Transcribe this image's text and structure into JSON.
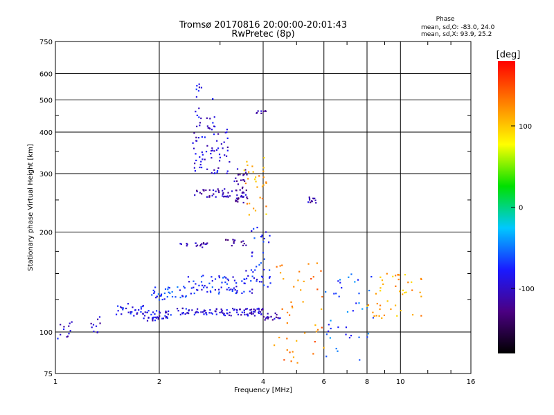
{
  "chart_data": {
    "type": "scatter",
    "title": "Tromsø 20170816 20:00:00-20:01:43",
    "subtitle": "RwPretec (8p)",
    "phase_info": {
      "heading": "Phase",
      "line_o": "mean, sd,O: -83.0, 24.0",
      "line_x": "mean, sd,X:  93.9, 25.2"
    },
    "xlabel": "Frequency [MHz]",
    "ylabel": "Stationary phase Virtual Height [km]",
    "x_scale": "log",
    "y_scale": "log",
    "xlim": [
      1,
      16
    ],
    "ylim": [
      75,
      750
    ],
    "x_ticks": [
      1,
      2,
      4,
      6,
      8,
      10,
      16
    ],
    "x_tick_labels": [
      "1",
      "2",
      "4",
      "6",
      "8",
      "10",
      "16"
    ],
    "y_ticks": [
      75,
      100,
      200,
      300,
      400,
      500,
      600,
      750
    ],
    "y_tick_labels": [
      "75",
      "100",
      "200",
      "300",
      "400",
      "500",
      "600",
      "750"
    ],
    "grid": true,
    "colorbar": {
      "label": "[deg]",
      "range": [
        -180,
        180
      ],
      "ticks": [
        100,
        0,
        -100
      ],
      "tick_labels": [
        "100",
        "0",
        "-100"
      ],
      "colors": [
        "#000000",
        "#4b0082",
        "#1a1aff",
        "#00c8ff",
        "#00e000",
        "#ffff00",
        "#ff8000",
        "#ff0000"
      ]
    },
    "clusters": [
      {
        "x_range": [
          1.0,
          1.12
        ],
        "y_range": [
          95,
          108
        ],
        "phase": -95,
        "count": 12
      },
      {
        "x_range": [
          1.25,
          1.35
        ],
        "y_range": [
          98,
          112
        ],
        "phase": -100,
        "count": 10
      },
      {
        "x_range": [
          1.5,
          1.8
        ],
        "y_range": [
          112,
          122
        ],
        "phase": -85,
        "count": 28
      },
      {
        "x_range": [
          1.8,
          2.2
        ],
        "y_range": [
          108,
          116
        ],
        "phase": -90,
        "count": 40
      },
      {
        "x_range": [
          2.2,
          3.2
        ],
        "y_range": [
          112,
          118
        ],
        "phase": -88,
        "count": 55
      },
      {
        "x_range": [
          3.2,
          4.0
        ],
        "y_range": [
          112,
          118
        ],
        "phase": -100,
        "count": 45
      },
      {
        "x_range": [
          4.0,
          4.5
        ],
        "y_range": [
          108,
          114
        ],
        "phase": -105,
        "count": 18
      },
      {
        "x_range": [
          1.9,
          2.4
        ],
        "y_range": [
          125,
          138
        ],
        "phase": -70,
        "count": 35
      },
      {
        "x_range": [
          2.4,
          3.3
        ],
        "y_range": [
          130,
          148
        ],
        "phase": -75,
        "count": 50
      },
      {
        "x_range": [
          3.3,
          4.2
        ],
        "y_range": [
          130,
          155
        ],
        "phase": -80,
        "count": 40
      },
      {
        "x_range": [
          3.7,
          4.2
        ],
        "y_range": [
          155,
          210
        ],
        "phase": -78,
        "count": 20
      },
      {
        "x_range": [
          2.3,
          2.8
        ],
        "y_range": [
          180,
          186
        ],
        "phase": -110,
        "count": 18
      },
      {
        "x_range": [
          3.0,
          3.6
        ],
        "y_range": [
          182,
          190
        ],
        "phase": -120,
        "count": 14
      },
      {
        "x_range": [
          2.5,
          3.6
        ],
        "y_range": [
          255,
          270
        ],
        "phase": -110,
        "count": 45
      },
      {
        "x_range": [
          3.3,
          3.6
        ],
        "y_range": [
          240,
          310
        ],
        "phase": -112,
        "count": 35
      },
      {
        "x_range": [
          3.5,
          4.1
        ],
        "y_range": [
          225,
          335
        ],
        "phase": 110,
        "count": 30
      },
      {
        "x_range": [
          5.4,
          5.7
        ],
        "y_range": [
          245,
          258
        ],
        "phase": -110,
        "count": 12
      },
      {
        "x_range": [
          2.5,
          3.2
        ],
        "y_range": [
          300,
          420
        ],
        "phase": -95,
        "count": 70
      },
      {
        "x_range": [
          2.5,
          2.9
        ],
        "y_range": [
          420,
          560
        ],
        "phase": -90,
        "count": 18
      },
      {
        "x_range": [
          3.8,
          4.1
        ],
        "y_range": [
          455,
          465
        ],
        "phase": -110,
        "count": 8
      },
      {
        "x_range": [
          4.3,
          6.0
        ],
        "y_range": [
          78,
          165
        ],
        "phase": 130,
        "count": 45
      },
      {
        "x_range": [
          6.0,
          8.5
        ],
        "y_range": [
          80,
          150
        ],
        "phase": -60,
        "count": 40
      },
      {
        "x_range": [
          8.0,
          11.5
        ],
        "y_range": [
          110,
          150
        ],
        "phase": 110,
        "count": 45
      }
    ]
  }
}
